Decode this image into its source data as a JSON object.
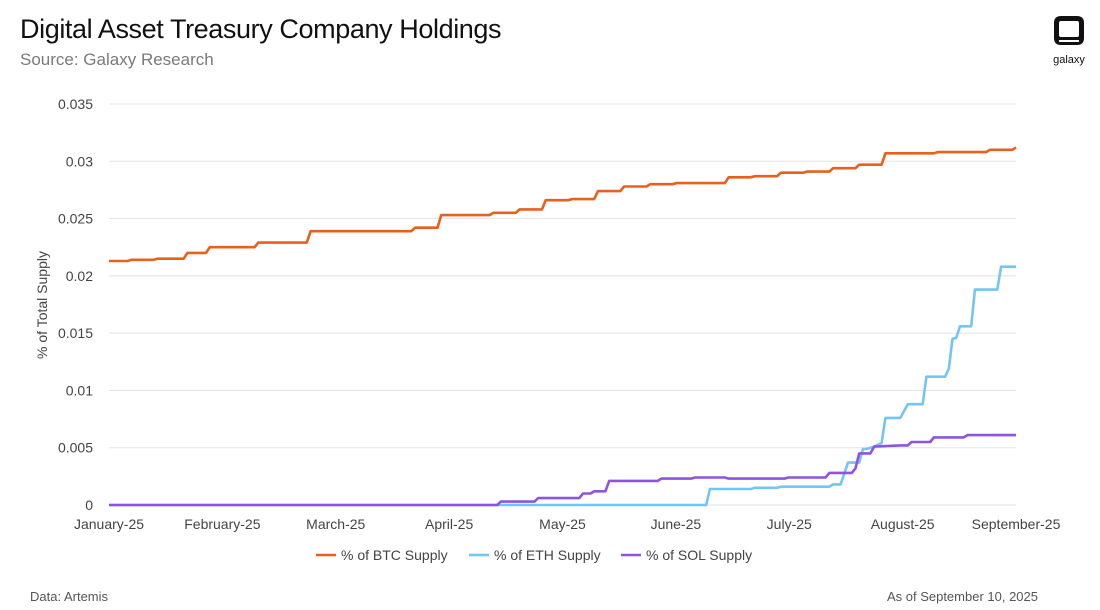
{
  "header": {
    "title": "Digital Asset Treasury Company Holdings",
    "subtitle": "Source: Galaxy Research"
  },
  "logo": {
    "icon": "galaxy-logo-icon",
    "text": "galaxy"
  },
  "footer": {
    "left": "Data: Artemis",
    "right": "As of September 10, 2025"
  },
  "chart_data": {
    "type": "line",
    "title": "Digital Asset Treasury Company Holdings",
    "subtitle": "Source: Galaxy Research",
    "xlabel": "",
    "ylabel": "% of Total Supply",
    "x_ticks": [
      "January-25",
      "February-25",
      "March-25",
      "April-25",
      "May-25",
      "June-25",
      "July-25",
      "August-25",
      "September-25"
    ],
    "xlim": [
      "2025-01-01",
      "2025-09-01"
    ],
    "y_ticks": [
      "0",
      "0.005",
      "0.01",
      "0.015",
      "0.02",
      "0.025",
      "0.03",
      "0.035"
    ],
    "ylim": [
      0,
      0.035
    ],
    "grid": "horizontal",
    "legend_position": "bottom-center",
    "series": [
      {
        "name": "% of BTC Supply",
        "color": "#E8601C",
        "points": [
          [
            "2025-01-01",
            0.0213
          ],
          [
            "2025-01-06",
            0.0213
          ],
          [
            "2025-01-07",
            0.0214
          ],
          [
            "2025-01-13",
            0.0214
          ],
          [
            "2025-01-14",
            0.0215
          ],
          [
            "2025-01-21",
            0.0215
          ],
          [
            "2025-01-22",
            0.022
          ],
          [
            "2025-01-27",
            0.022
          ],
          [
            "2025-01-28",
            0.0225
          ],
          [
            "2025-02-09",
            0.0225
          ],
          [
            "2025-02-10",
            0.0229
          ],
          [
            "2025-02-23",
            0.0229
          ],
          [
            "2025-02-24",
            0.0239
          ],
          [
            "2025-03-23",
            0.0239
          ],
          [
            "2025-03-24",
            0.0242
          ],
          [
            "2025-03-30",
            0.0242
          ],
          [
            "2025-03-31",
            0.0253
          ],
          [
            "2025-04-13",
            0.0253
          ],
          [
            "2025-04-14",
            0.0255
          ],
          [
            "2025-04-20",
            0.0255
          ],
          [
            "2025-04-21",
            0.0258
          ],
          [
            "2025-04-27",
            0.0258
          ],
          [
            "2025-04-28",
            0.0266
          ],
          [
            "2025-05-04",
            0.0266
          ],
          [
            "2025-05-05",
            0.0267
          ],
          [
            "2025-05-11",
            0.0267
          ],
          [
            "2025-05-12",
            0.0274
          ],
          [
            "2025-05-18",
            0.0274
          ],
          [
            "2025-05-19",
            0.0278
          ],
          [
            "2025-05-25",
            0.0278
          ],
          [
            "2025-05-26",
            0.028
          ],
          [
            "2025-06-01",
            0.028
          ],
          [
            "2025-06-02",
            0.0281
          ],
          [
            "2025-06-15",
            0.0281
          ],
          [
            "2025-06-16",
            0.0286
          ],
          [
            "2025-06-22",
            0.0286
          ],
          [
            "2025-06-23",
            0.0287
          ],
          [
            "2025-06-29",
            0.0287
          ],
          [
            "2025-06-30",
            0.029
          ],
          [
            "2025-07-06",
            0.029
          ],
          [
            "2025-07-07",
            0.0291
          ],
          [
            "2025-07-13",
            0.0291
          ],
          [
            "2025-07-14",
            0.0294
          ],
          [
            "2025-07-20",
            0.0294
          ],
          [
            "2025-07-21",
            0.0297
          ],
          [
            "2025-07-27",
            0.0297
          ],
          [
            "2025-07-28",
            0.0307
          ],
          [
            "2025-08-10",
            0.0307
          ],
          [
            "2025-08-11",
            0.0308
          ],
          [
            "2025-08-24",
            0.0308
          ],
          [
            "2025-08-25",
            0.031
          ],
          [
            "2025-08-31",
            0.031
          ],
          [
            "2025-09-01",
            0.0312
          ]
        ]
      },
      {
        "name": "% of ETH Supply",
        "color": "#74C5F3",
        "points": [
          [
            "2025-01-01",
            0
          ],
          [
            "2025-06-10",
            0
          ],
          [
            "2025-06-11",
            0.0014
          ],
          [
            "2025-06-22",
            0.0014
          ],
          [
            "2025-06-23",
            0.0015
          ],
          [
            "2025-06-29",
            0.0015
          ],
          [
            "2025-06-30",
            0.0016
          ],
          [
            "2025-07-13",
            0.0016
          ],
          [
            "2025-07-14",
            0.0018
          ],
          [
            "2025-07-16",
            0.0018
          ],
          [
            "2025-07-18",
            0.0037
          ],
          [
            "2025-07-21",
            0.0037
          ],
          [
            "2025-07-22",
            0.0049
          ],
          [
            "2025-07-23",
            0.0049
          ],
          [
            "2025-07-25",
            0.0051
          ],
          [
            "2025-07-27",
            0.0054
          ],
          [
            "2025-07-28",
            0.0076
          ],
          [
            "2025-08-01",
            0.0076
          ],
          [
            "2025-08-03",
            0.0088
          ],
          [
            "2025-08-07",
            0.0088
          ],
          [
            "2025-08-08",
            0.0112
          ],
          [
            "2025-08-13",
            0.0112
          ],
          [
            "2025-08-14",
            0.0119
          ],
          [
            "2025-08-15",
            0.0145
          ],
          [
            "2025-08-16",
            0.0146
          ],
          [
            "2025-08-17",
            0.0156
          ],
          [
            "2025-08-20",
            0.0156
          ],
          [
            "2025-08-21",
            0.0188
          ],
          [
            "2025-08-27",
            0.0188
          ],
          [
            "2025-08-28",
            0.0208
          ],
          [
            "2025-09-01",
            0.0208
          ]
        ]
      },
      {
        "name": "% of SOL Supply",
        "color": "#8E54E0",
        "points": [
          [
            "2025-01-01",
            0
          ],
          [
            "2025-04-15",
            0
          ],
          [
            "2025-04-16",
            0.0003
          ],
          [
            "2025-04-25",
            0.0003
          ],
          [
            "2025-04-26",
            0.0006
          ],
          [
            "2025-05-07",
            0.0006
          ],
          [
            "2025-05-08",
            0.001
          ],
          [
            "2025-05-10",
            0.001
          ],
          [
            "2025-05-11",
            0.0012
          ],
          [
            "2025-05-14",
            0.0012
          ],
          [
            "2025-05-15",
            0.0021
          ],
          [
            "2025-05-28",
            0.0021
          ],
          [
            "2025-05-29",
            0.0023
          ],
          [
            "2025-06-06",
            0.0023
          ],
          [
            "2025-06-07",
            0.0024
          ],
          [
            "2025-06-15",
            0.0024
          ],
          [
            "2025-06-16",
            0.0023
          ],
          [
            "2025-07-01",
            0.0023
          ],
          [
            "2025-07-02",
            0.0024
          ],
          [
            "2025-07-12",
            0.0024
          ],
          [
            "2025-07-13",
            0.0028
          ],
          [
            "2025-07-19",
            0.0028
          ],
          [
            "2025-07-20",
            0.0032
          ],
          [
            "2025-07-21",
            0.0045
          ],
          [
            "2025-07-24",
            0.0045
          ],
          [
            "2025-07-25",
            0.0051
          ],
          [
            "2025-08-01",
            0.0052
          ],
          [
            "2025-08-03",
            0.0052
          ],
          [
            "2025-08-04",
            0.0055
          ],
          [
            "2025-08-09",
            0.0055
          ],
          [
            "2025-08-10",
            0.0059
          ],
          [
            "2025-08-18",
            0.0059
          ],
          [
            "2025-08-19",
            0.0061
          ],
          [
            "2025-09-01",
            0.0061
          ]
        ]
      }
    ]
  }
}
